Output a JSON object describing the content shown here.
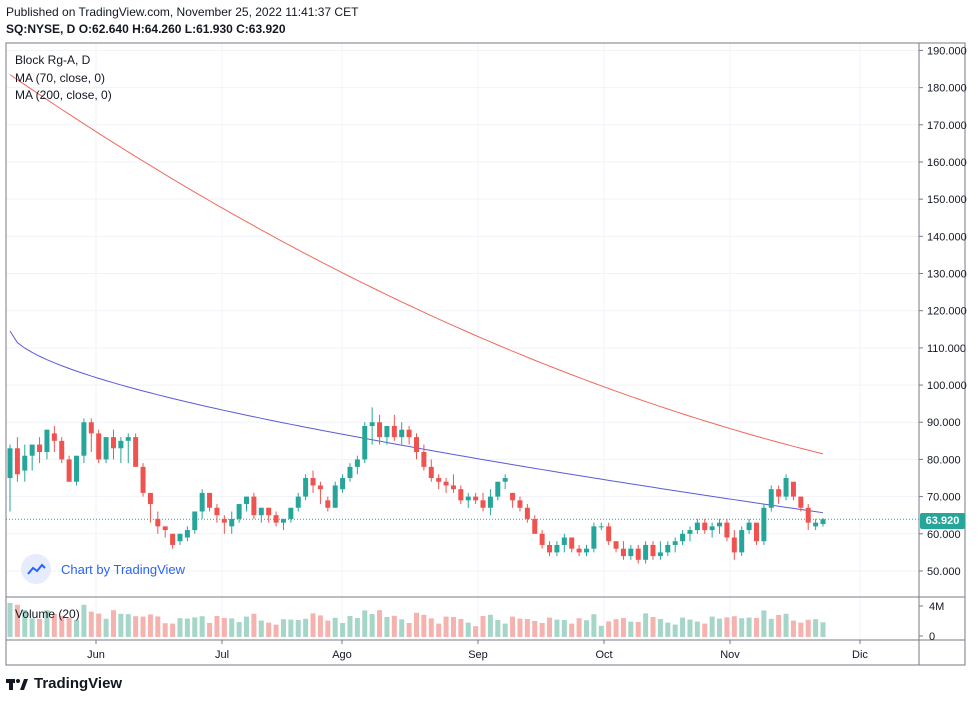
{
  "header": {
    "published": "Published on TradingView.com, November 25, 2022 11:41:37 CET",
    "symbol": "SQ:NYSE, D",
    "ohlc": "O:62.640 H:64.260 L:61.930 C:63.920"
  },
  "legend": {
    "title": "Block Rg-A, D",
    "ma_70": "MA (70, close, 0)",
    "ma_200": "MA (200, close, 0)",
    "volume": "Volume (20)"
  },
  "watermark": {
    "text": "Chart by TradingView"
  },
  "footer": {
    "brand": "TradingView"
  },
  "last_price_label": "63.920",
  "colors": {
    "up": "#26a69a",
    "down": "#ef5350",
    "ma70": "#5b5bd6",
    "ma200": "#f0695c",
    "volume_up": "#a5d6c8",
    "volume_down": "#f5b3b0",
    "last_price": "#26a69a"
  },
  "chart_data": {
    "type": "candlestick",
    "y_axis": {
      "ticks": [
        "190.000",
        "180.000",
        "170.000",
        "160.000",
        "150.000",
        "140.000",
        "130.000",
        "120.000",
        "110.000",
        "100.000",
        "90.000",
        "80.000",
        "70.000",
        "60.000",
        "50.000"
      ],
      "range": [
        43,
        192
      ]
    },
    "volume_axis": {
      "ticks": [
        "4M",
        "0"
      ]
    },
    "x_axis": {
      "labels": [
        "Jun",
        "Jul",
        "Ago",
        "Sep",
        "Oct",
        "Nov",
        "Dic"
      ]
    },
    "last_price": 63.92,
    "candles_ohlc": [
      [
        75,
        84,
        66,
        83
      ],
      [
        83,
        86,
        74,
        76
      ],
      [
        77,
        84,
        74,
        81
      ],
      [
        81,
        83,
        77,
        84
      ],
      [
        84,
        86,
        79,
        82
      ],
      [
        82,
        88,
        80,
        88
      ],
      [
        87,
        89,
        82,
        85
      ],
      [
        85,
        86,
        79,
        80
      ],
      [
        80,
        81,
        74,
        74
      ],
      [
        74,
        80,
        73,
        81
      ],
      [
        81,
        91,
        79,
        90
      ],
      [
        90,
        91,
        82,
        87
      ],
      [
        87,
        88,
        79,
        80
      ],
      [
        80,
        86,
        79,
        86
      ],
      [
        86,
        88,
        80,
        83
      ],
      [
        83,
        86,
        79,
        85
      ],
      [
        85,
        87,
        79,
        86
      ],
      [
        86,
        87,
        79,
        78
      ],
      [
        78,
        79,
        70,
        71
      ],
      [
        71,
        69,
        63,
        68
      ],
      [
        64,
        66,
        60,
        62
      ],
      [
        62,
        62,
        59,
        61
      ],
      [
        60,
        60,
        56,
        57
      ],
      [
        58,
        60,
        57,
        60
      ],
      [
        59,
        62,
        58,
        61
      ],
      [
        61,
        66,
        60,
        66
      ],
      [
        66,
        72,
        64,
        71
      ],
      [
        71,
        71,
        66,
        67
      ],
      [
        67,
        68,
        63,
        65
      ],
      [
        64,
        65,
        60,
        63
      ],
      [
        62,
        66,
        60,
        64
      ],
      [
        64,
        68,
        63,
        68
      ],
      [
        68,
        70,
        66,
        70
      ],
      [
        70,
        71,
        64,
        65
      ],
      [
        65,
        67,
        63,
        67
      ],
      [
        67,
        67,
        63,
        65
      ],
      [
        65,
        66,
        62,
        63
      ],
      [
        63,
        64,
        61,
        64
      ],
      [
        64,
        67,
        63,
        67
      ],
      [
        67,
        71,
        66,
        70
      ],
      [
        70,
        76,
        69,
        75
      ],
      [
        75,
        77,
        71,
        73
      ],
      [
        73,
        74,
        68,
        72
      ],
      [
        69,
        70,
        66,
        67
      ],
      [
        67,
        74,
        67,
        73
      ],
      [
        72,
        76,
        71,
        75
      ],
      [
        75,
        79,
        74,
        78
      ],
      [
        78,
        81,
        76,
        80
      ],
      [
        80,
        90,
        79,
        89
      ],
      [
        89,
        94,
        84,
        90
      ],
      [
        90,
        92,
        84,
        86
      ],
      [
        86,
        89,
        84,
        89
      ],
      [
        89,
        92,
        85,
        86
      ],
      [
        86,
        90,
        84,
        88
      ],
      [
        88,
        89,
        84,
        86
      ],
      [
        86,
        87,
        80,
        82
      ],
      [
        82,
        84,
        77,
        78
      ],
      [
        78,
        80,
        74,
        75
      ],
      [
        75,
        76,
        72,
        74
      ],
      [
        74,
        75,
        71,
        73
      ],
      [
        73,
        76,
        71,
        72
      ],
      [
        72,
        73,
        68,
        69
      ],
      [
        69,
        71,
        67,
        70
      ],
      [
        70,
        71,
        68,
        69
      ],
      [
        69,
        71,
        66,
        67
      ],
      [
        67,
        72,
        65,
        70
      ],
      [
        70,
        74,
        69,
        74
      ],
      [
        74,
        76,
        72,
        75
      ],
      [
        71,
        71,
        67,
        69
      ],
      [
        69,
        70,
        66,
        67
      ],
      [
        67,
        68,
        63,
        64
      ],
      [
        64,
        65,
        60,
        60
      ],
      [
        60,
        61,
        56,
        57
      ],
      [
        57,
        58,
        54,
        55
      ],
      [
        55,
        58,
        54,
        57
      ],
      [
        57,
        60,
        55,
        59
      ],
      [
        59,
        59,
        55,
        56
      ],
      [
        56,
        57,
        54,
        55
      ],
      [
        55,
        57,
        54,
        56
      ],
      [
        56,
        63,
        55,
        62
      ],
      [
        62,
        63,
        61,
        62
      ],
      [
        62,
        63,
        57,
        58
      ],
      [
        58,
        58,
        55,
        56
      ],
      [
        56,
        58,
        53,
        54
      ],
      [
        54,
        57,
        53,
        56
      ],
      [
        56,
        57,
        52,
        53
      ],
      [
        53,
        58,
        52,
        57
      ],
      [
        57,
        58,
        53,
        54
      ],
      [
        54,
        58,
        53,
        55
      ],
      [
        55,
        58,
        54,
        57
      ],
      [
        57,
        59,
        55,
        58
      ],
      [
        58,
        61,
        57,
        60
      ],
      [
        60,
        62,
        58,
        61
      ],
      [
        61,
        64,
        60,
        63
      ],
      [
        63,
        64,
        60,
        61
      ],
      [
        61,
        63,
        59,
        62
      ],
      [
        62,
        64,
        60,
        63
      ],
      [
        63,
        64,
        58,
        59
      ],
      [
        59,
        61,
        53,
        55
      ],
      [
        55,
        62,
        54,
        61
      ],
      [
        61,
        64,
        60,
        63
      ],
      [
        63,
        62,
        57,
        58
      ],
      [
        58,
        68,
        57,
        67
      ],
      [
        67,
        73,
        66,
        72
      ],
      [
        72,
        73,
        68,
        70
      ],
      [
        70,
        76,
        69,
        75
      ],
      [
        74,
        73,
        69,
        70
      ],
      [
        70,
        70,
        66,
        67
      ],
      [
        67,
        68,
        61,
        63
      ],
      [
        62,
        64,
        61,
        63
      ],
      [
        62.64,
        64.26,
        61.93,
        63.92
      ]
    ]
  }
}
